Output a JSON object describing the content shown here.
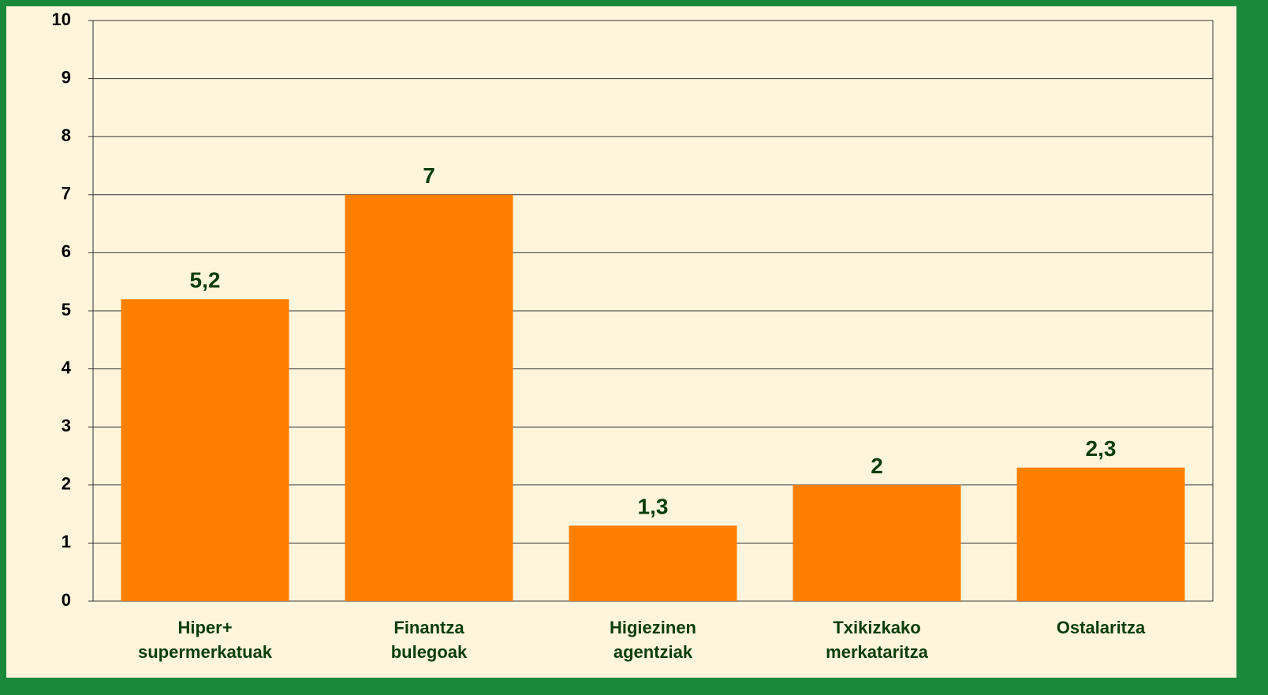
{
  "chart_data": {
    "type": "bar",
    "categories": [
      "Hiper+\nsupermerkatuak",
      "Finantza\nbulegoak",
      "Higiezinen\nagentziak",
      "Txikizkako\nmerkataritza",
      "Ostalaritza"
    ],
    "values": [
      5.2,
      7,
      1.3,
      2,
      2.3
    ],
    "value_labels": [
      "5,2",
      "7",
      "1,3",
      "2",
      "2,3"
    ],
    "color": "#ff8000",
    "ylim": [
      0,
      10
    ],
    "yticks": [
      0,
      1,
      2,
      3,
      4,
      5,
      6,
      7,
      8,
      9,
      10
    ],
    "grid": true
  }
}
